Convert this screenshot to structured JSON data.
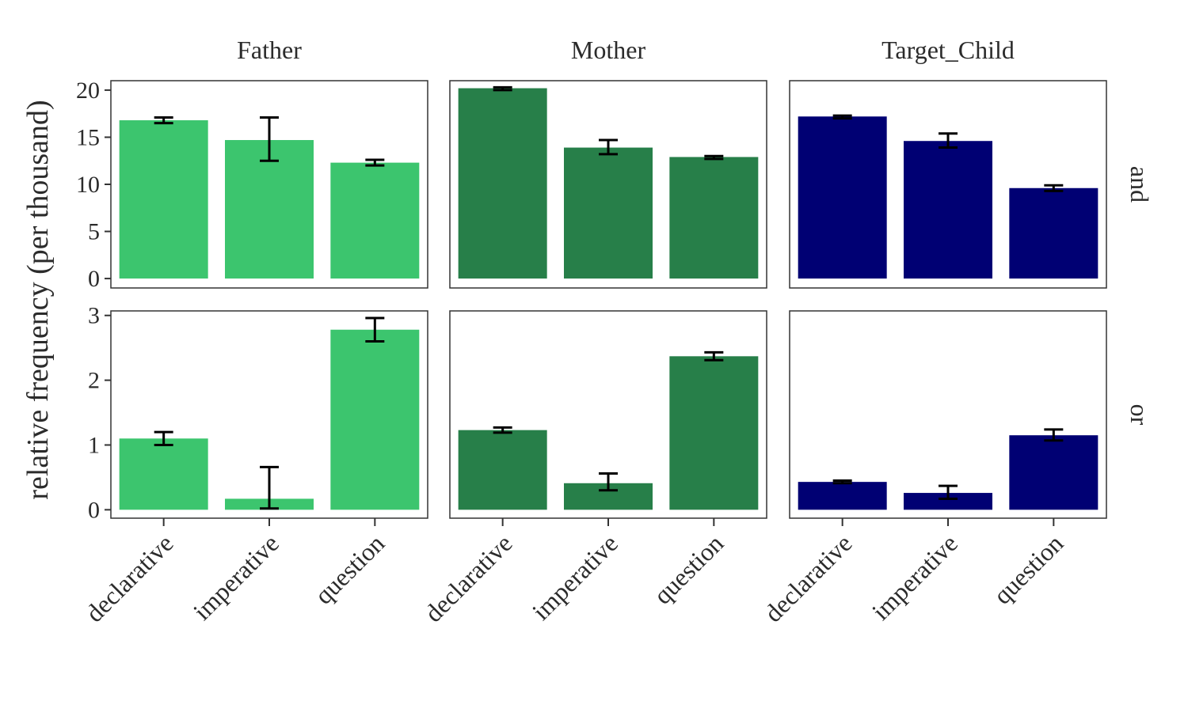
{
  "chart_data": {
    "type": "bar",
    "ylabel": "relative frequency (per thousand)",
    "xlabel": "",
    "columns": [
      "Father",
      "Mother",
      "Target_Child"
    ],
    "rows": [
      "and",
      "or"
    ],
    "categories": [
      "declarative",
      "imperative",
      "question"
    ],
    "colors": {
      "Father": "#3cc56e",
      "Mother": "#277f49",
      "Target_Child": "#000073"
    },
    "grid": false,
    "legend": "none",
    "row_scales": {
      "and": {
        "ylim": [
          -1,
          21
        ],
        "ticks": [
          0,
          5,
          10,
          15,
          20
        ]
      },
      "or": {
        "ylim": [
          -0.13,
          3.07
        ],
        "ticks": [
          0,
          1,
          2,
          3
        ]
      }
    },
    "panels": [
      {
        "column": "Father",
        "row": "and",
        "values": [
          16.8,
          14.7,
          12.3
        ],
        "err_low": [
          16.5,
          12.5,
          12.0
        ],
        "err_high": [
          17.1,
          17.1,
          12.6
        ]
      },
      {
        "column": "Mother",
        "row": "and",
        "values": [
          20.2,
          13.9,
          12.9
        ],
        "err_low": [
          20.0,
          13.2,
          12.7
        ],
        "err_high": [
          20.3,
          14.7,
          13.0
        ]
      },
      {
        "column": "Target_Child",
        "row": "and",
        "values": [
          17.2,
          14.6,
          9.6
        ],
        "err_low": [
          17.0,
          13.9,
          9.3
        ],
        "err_high": [
          17.3,
          15.4,
          9.9
        ]
      },
      {
        "column": "Father",
        "row": "or",
        "values": [
          1.1,
          0.17,
          2.78
        ],
        "err_low": [
          1.0,
          0.02,
          2.6
        ],
        "err_high": [
          1.2,
          0.66,
          2.96
        ]
      },
      {
        "column": "Mother",
        "row": "or",
        "values": [
          1.23,
          0.41,
          2.37
        ],
        "err_low": [
          1.19,
          0.3,
          2.31
        ],
        "err_high": [
          1.27,
          0.56,
          2.43
        ]
      },
      {
        "column": "Target_Child",
        "row": "or",
        "values": [
          0.43,
          0.26,
          1.15
        ],
        "err_low": [
          0.41,
          0.17,
          1.07
        ],
        "err_high": [
          0.45,
          0.37,
          1.24
        ]
      }
    ]
  }
}
